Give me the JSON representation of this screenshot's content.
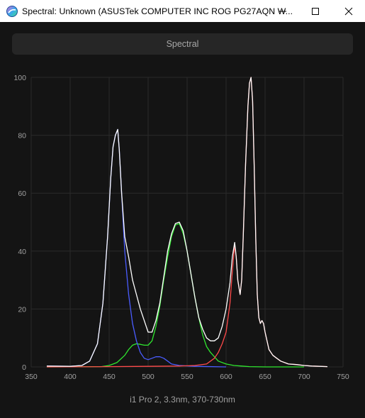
{
  "window": {
    "title": "Spectral: Unknown (ASUSTek COMPUTER INC ROG PG27AQN W...",
    "icon": "colorimeter-app-icon",
    "controls": [
      "minimize-icon",
      "maximize-icon",
      "close-icon"
    ]
  },
  "toolbar": {
    "tab_label": "Spectral"
  },
  "chart_data": {
    "type": "line",
    "title": "",
    "xlabel": "i1 Pro 2, 3.3nm, 370-730nm",
    "ylabel": "",
    "xlim": [
      350,
      750
    ],
    "ylim": [
      0,
      100
    ],
    "xticks": [
      350,
      400,
      450,
      500,
      550,
      600,
      650,
      700,
      750
    ],
    "yticks": [
      0,
      20,
      40,
      60,
      80,
      100
    ],
    "grid": true,
    "legend": "none",
    "colors": {
      "white": "#ffffff",
      "red": "#ff4a4a",
      "green": "#2fe82f",
      "blue": "#4a5cff",
      "grid": "#2a2a2a",
      "axis": "#a0a0a0"
    },
    "series": [
      {
        "color": "white",
        "x": [
          370,
          400,
          415,
          425,
          435,
          442,
          448,
          452,
          455,
          458,
          461,
          463,
          466,
          470,
          475,
          480,
          485,
          490,
          495,
          500,
          505,
          510,
          515,
          520,
          525,
          530,
          535,
          540,
          545,
          550,
          555,
          560,
          565,
          570,
          575,
          580,
          585,
          590,
          595,
          600,
          605,
          608,
          611,
          613,
          615,
          618,
          620,
          622,
          625,
          628,
          630,
          632,
          634,
          636,
          638,
          640,
          642,
          644,
          646,
          648,
          650,
          655,
          660,
          665,
          670,
          680,
          690,
          700,
          710,
          720,
          730
        ],
        "y": [
          0.3,
          0.2,
          0.5,
          2,
          8,
          22,
          45,
          65,
          76,
          80,
          82,
          75,
          60,
          45,
          38,
          30,
          25,
          20,
          16,
          12,
          12,
          16,
          22,
          31,
          40,
          46,
          49.5,
          50,
          47,
          40,
          32,
          24,
          17,
          13,
          10,
          9,
          9,
          10,
          14,
          20,
          29,
          38,
          43,
          38,
          30,
          25,
          30,
          45,
          70,
          90,
          98,
          100,
          92,
          70,
          45,
          25,
          17,
          15,
          16,
          15,
          12,
          6,
          4,
          3,
          2,
          1,
          0.8,
          0.5,
          0.3,
          0.2,
          0.1
        ]
      },
      {
        "color": "red",
        "x": [
          370,
          450,
          500,
          540,
          560,
          575,
          585,
          590,
          595,
          600,
          605,
          608,
          611,
          613,
          615,
          618,
          620,
          622,
          625,
          628,
          630,
          632,
          634,
          636,
          638,
          640,
          642,
          644,
          646,
          648,
          650,
          655,
          660,
          665,
          670,
          680,
          690,
          700,
          710,
          720,
          730
        ],
        "y": [
          0,
          0.1,
          0.2,
          0.3,
          0.5,
          1,
          3,
          5,
          8,
          12,
          22,
          33,
          42,
          38,
          30,
          25,
          30,
          45,
          70,
          90,
          98,
          100,
          92,
          70,
          45,
          25,
          17,
          15,
          16,
          15,
          12,
          6,
          4,
          3,
          2,
          1,
          0.8,
          0.5,
          0.3,
          0.2,
          0.1
        ]
      },
      {
        "color": "green",
        "x": [
          370,
          440,
          450,
          460,
          470,
          475,
          480,
          485,
          490,
          495,
          500,
          505,
          510,
          515,
          520,
          525,
          530,
          535,
          540,
          545,
          550,
          555,
          560,
          565,
          570,
          575,
          580,
          590,
          600,
          610,
          620,
          630,
          650,
          700
        ],
        "y": [
          0,
          0.1,
          0.5,
          1.5,
          4,
          6,
          7.5,
          8,
          7.8,
          7.5,
          7.5,
          9,
          14,
          21,
          30,
          38,
          45,
          49,
          49.5,
          46,
          40,
          32,
          24,
          17,
          11,
          7,
          5,
          2,
          1,
          0.5,
          0.3,
          0.1,
          0,
          0
        ]
      },
      {
        "color": "blue",
        "x": [
          370,
          400,
          415,
          425,
          435,
          442,
          448,
          452,
          455,
          458,
          461,
          463,
          466,
          470,
          475,
          480,
          485,
          490,
          495,
          500,
          505,
          510,
          515,
          520,
          525,
          530,
          540,
          560,
          600
        ],
        "y": [
          0.3,
          0.2,
          0.5,
          2,
          8,
          22,
          45,
          65,
          76,
          80,
          82,
          75,
          60,
          40,
          25,
          15,
          9,
          5,
          3,
          2.5,
          3,
          3.5,
          3.5,
          3,
          2,
          1,
          0.5,
          0.2,
          0
        ]
      }
    ]
  }
}
